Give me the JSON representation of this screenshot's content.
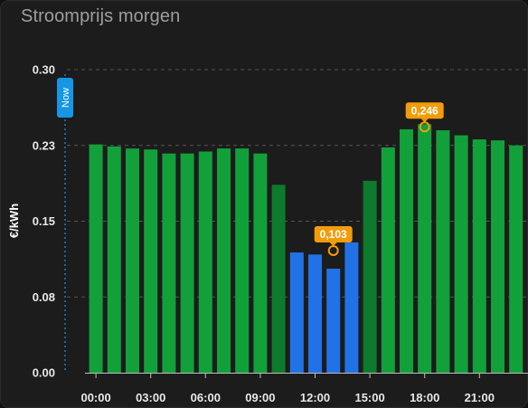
{
  "card": {
    "title": "Stroomprijs morgen"
  },
  "colors": {
    "bar_green": "#12a03a",
    "bar_green_dim": "#0d7a2c",
    "bar_blue": "#2172e6",
    "annotation": "#f39c0b",
    "now_marker": "#1597e6",
    "grid": "#555555"
  },
  "chart_data": {
    "type": "bar",
    "ylabel": "€/kWh",
    "ylim": [
      0,
      0.3
    ],
    "y_ticks": [
      "0.00",
      "0.08",
      "0.15",
      "0.23",
      "0.30"
    ],
    "y_tick_values": [
      0.0,
      0.075,
      0.15,
      0.225,
      0.3
    ],
    "x_tick_labels": [
      "00:00",
      "03:00",
      "06:00",
      "09:00",
      "12:00",
      "15:00",
      "18:00",
      "21:00"
    ],
    "hours": [
      0,
      1,
      2,
      3,
      4,
      5,
      6,
      7,
      8,
      9,
      10,
      11,
      12,
      13,
      14,
      15,
      16,
      17,
      18,
      19,
      20,
      21,
      22,
      23
    ],
    "values": [
      0.226,
      0.224,
      0.222,
      0.221,
      0.217,
      0.217,
      0.219,
      0.222,
      0.222,
      0.217,
      0.186,
      0.119,
      0.117,
      0.103,
      0.129,
      0.19,
      0.223,
      0.241,
      0.246,
      0.24,
      0.235,
      0.231,
      0.23,
      0.225
    ],
    "cheapest_hours": [
      11,
      12,
      13,
      14
    ],
    "now_label": "Now",
    "annotations": [
      {
        "hour": 13,
        "value": 0.103,
        "label": "0,103"
      },
      {
        "hour": 18,
        "value": 0.246,
        "label": "0,246"
      }
    ]
  }
}
